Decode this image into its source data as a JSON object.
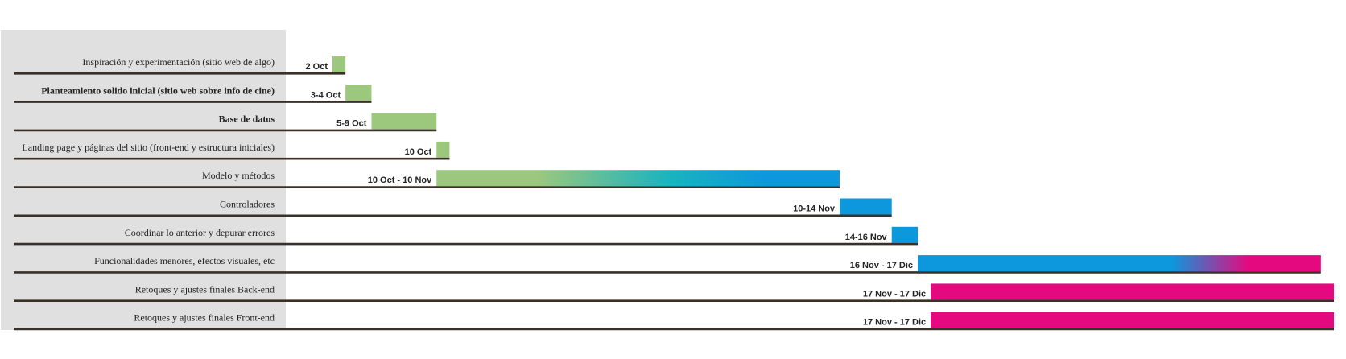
{
  "chart_data": {
    "type": "bar",
    "tasks": [
      {
        "label": "Inspiración y experimentación (sitio web de algo)",
        "bold": false,
        "date_label": "2 Oct",
        "start": "2024-10-02",
        "end": "2024-10-03",
        "color": "green"
      },
      {
        "label": "Planteamiento solido inicial (sitio web sobre info de cine)",
        "bold": true,
        "date_label": "3-4 Oct",
        "start": "2024-10-03",
        "end": "2024-10-05",
        "color": "green"
      },
      {
        "label": "Base de datos",
        "bold": true,
        "date_label": "5-9 Oct",
        "start": "2024-10-05",
        "end": "2024-10-10",
        "color": "green"
      },
      {
        "label": "Landing page y páginas del sitio (front-end y estructura iniciales)",
        "bold": false,
        "date_label": "10 Oct",
        "start": "2024-10-10",
        "end": "2024-10-11",
        "color": "green"
      },
      {
        "label": "Modelo y métodos",
        "bold": false,
        "date_label": "10 Oct - 10 Nov",
        "start": "2024-10-10",
        "end": "2024-11-10",
        "color": "green-teal-blue"
      },
      {
        "label": "Controladores",
        "bold": false,
        "date_label": "10-14 Nov",
        "start": "2024-11-10",
        "end": "2024-11-14",
        "color": "blue"
      },
      {
        "label": "Coordinar lo anterior y depurar errores",
        "bold": false,
        "date_label": "14-16 Nov",
        "start": "2024-11-14",
        "end": "2024-11-16",
        "color": "blue"
      },
      {
        "label": "Funcionalidades menores, efectos visuales, etc",
        "bold": false,
        "date_label": "16 Nov - 17 Dic",
        "start": "2024-11-16",
        "end": "2024-12-17",
        "color": "blue-magenta"
      },
      {
        "label": "Retoques y ajustes finales Back-end",
        "bold": false,
        "date_label": "17 Nov - 17 Dic",
        "start": "2024-11-17",
        "end": "2024-12-18",
        "color": "magenta"
      },
      {
        "label": "Retoques y ajustes finales Front-end",
        "bold": false,
        "date_label": "17 Nov - 17 Dic",
        "start": "2024-11-17",
        "end": "2024-12-18",
        "color": "magenta"
      }
    ],
    "x_range": [
      "2024-10-02",
      "2024-12-18"
    ],
    "grid": false,
    "colors": {
      "green": "#9bc87c",
      "teal": "#19b3c0",
      "blue": "#0d97dd",
      "magenta": "#e5097f",
      "label_panel": "#e0e0e0",
      "row_line": "#3a3028"
    }
  }
}
